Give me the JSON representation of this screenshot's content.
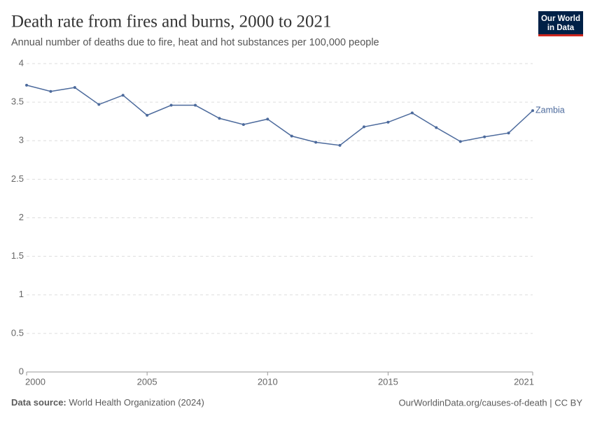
{
  "chart_data": {
    "type": "line",
    "title": "Death rate from fires and burns, 2000 to 2021",
    "subtitle": "Annual number of deaths due to fire, heat and hot substances per 100,000 people",
    "logo": [
      "Our World",
      "in Data"
    ],
    "source_label": "Data source:",
    "source": "World Health Organization (2024)",
    "url": "OurWorldinData.org/causes-of-death | CC BY",
    "x": [
      2000,
      2001,
      2002,
      2003,
      2004,
      2005,
      2006,
      2007,
      2008,
      2009,
      2010,
      2011,
      2012,
      2013,
      2014,
      2015,
      2016,
      2017,
      2018,
      2019,
      2020,
      2021
    ],
    "series": [
      {
        "name": "Zambia",
        "color": "#4c6a9c",
        "values": [
          3.72,
          3.64,
          3.69,
          3.47,
          3.59,
          3.33,
          3.46,
          3.46,
          3.29,
          3.21,
          3.28,
          3.06,
          2.98,
          2.94,
          3.18,
          3.24,
          3.36,
          3.17,
          2.99,
          3.05,
          3.1,
          3.39
        ]
      }
    ],
    "xlim": [
      2000,
      2021
    ],
    "xticks": [
      2000,
      2005,
      2010,
      2015,
      2021
    ],
    "ylim": [
      0,
      4
    ],
    "yticks": [
      0,
      0.5,
      1,
      1.5,
      2,
      2.5,
      3,
      3.5,
      4
    ],
    "grid": true
  }
}
